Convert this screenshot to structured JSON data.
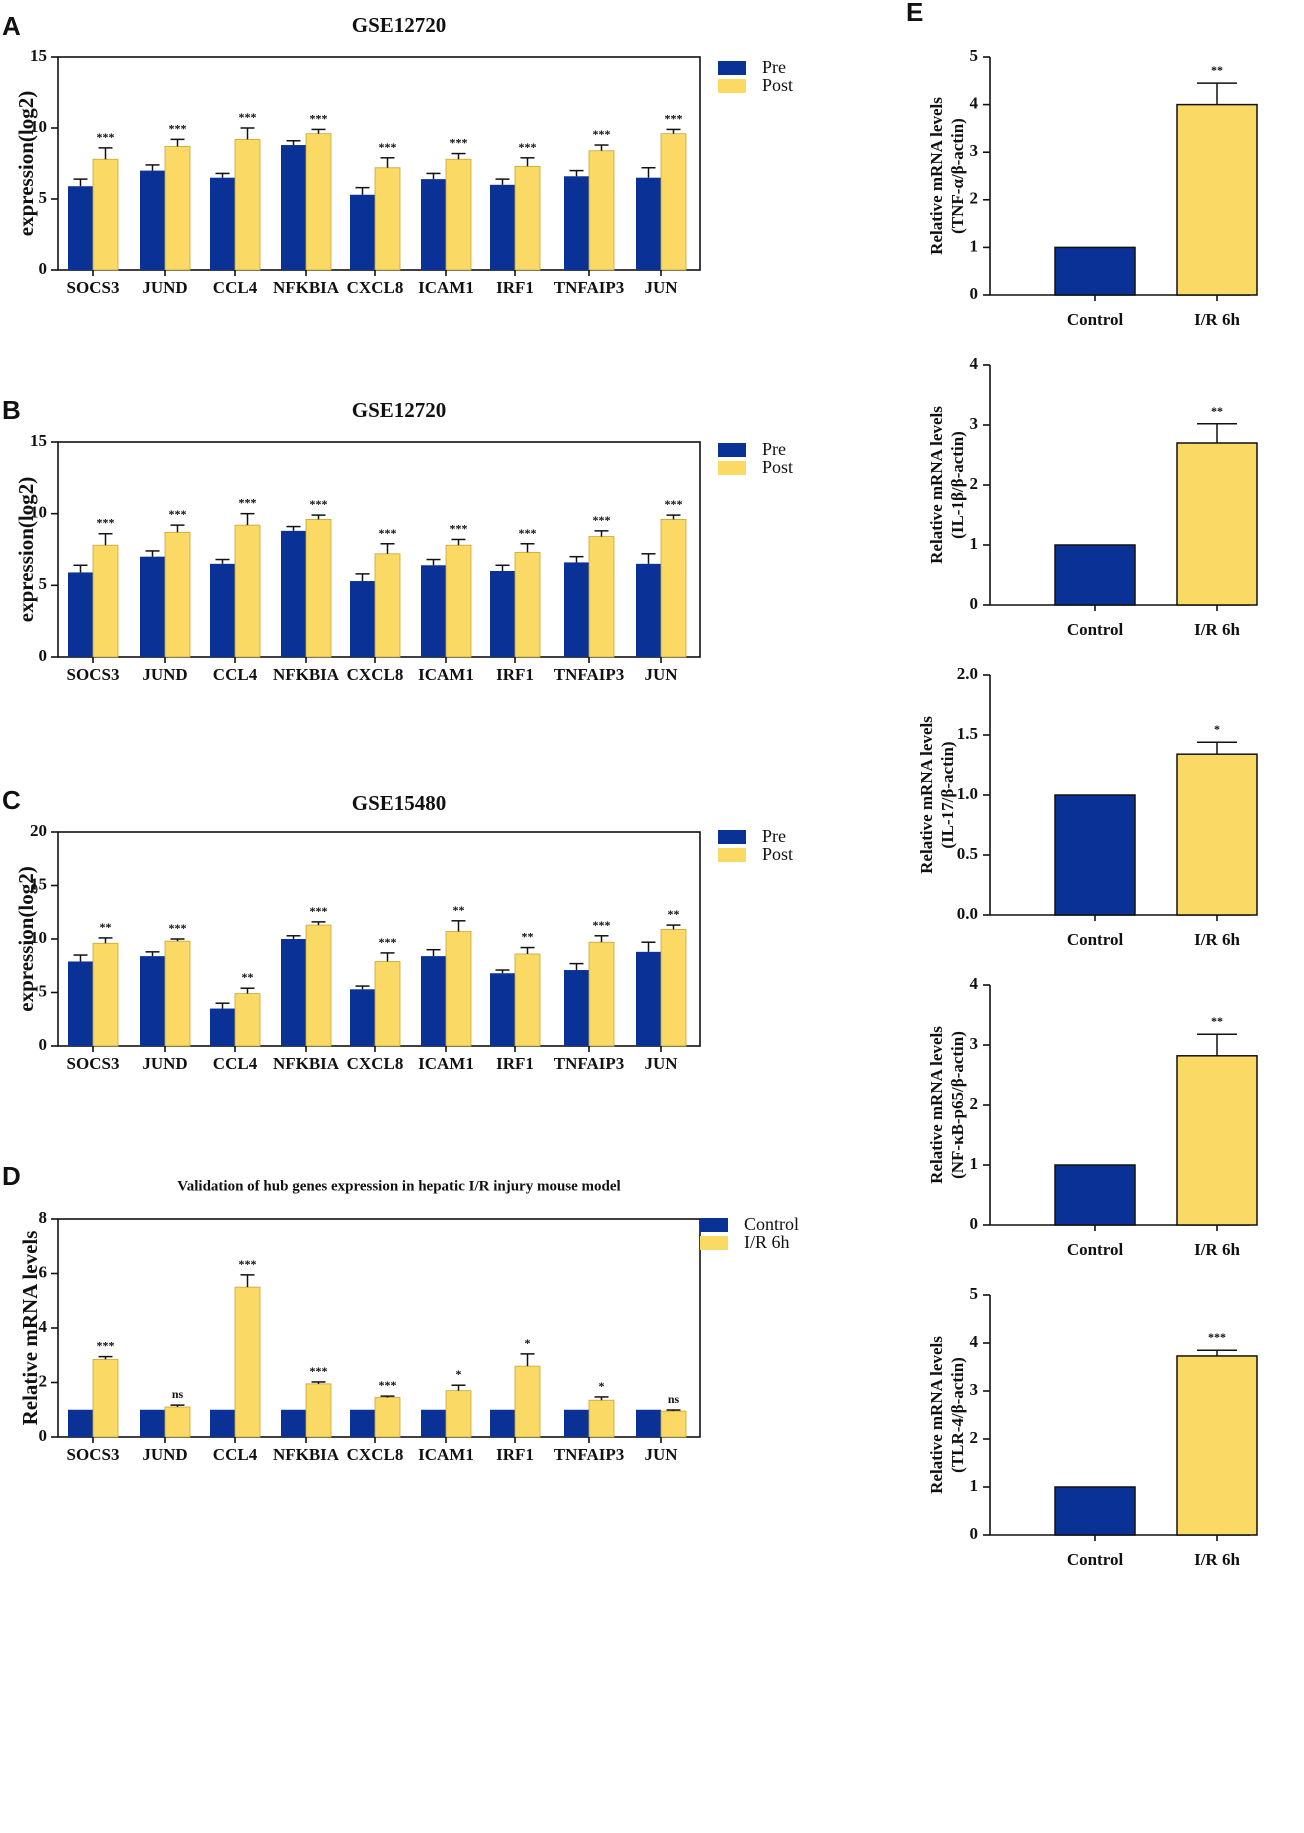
{
  "colors": {
    "control": "#0a3296",
    "treatment": "#fad964",
    "outline": "#111111"
  },
  "chart_data": [
    {
      "panel": "A",
      "type": "bar",
      "title": "GSE12720",
      "ylabel": "expression(log2)",
      "xlabel": "",
      "ylim": [
        0,
        15
      ],
      "yticks": [
        "0",
        "5",
        "10",
        "15"
      ],
      "ytick_values": [
        0,
        5,
        10,
        15
      ],
      "legend_position": "top-right",
      "categories": [
        "SOCS3",
        "JUND",
        "CCL4",
        "NFKBIA",
        "CXCL8",
        "ICAM1",
        "IRF1",
        "TNFAIP3",
        "JUN"
      ],
      "series": [
        {
          "name": "Pre",
          "values": [
            5.9,
            7.0,
            6.5,
            8.8,
            5.3,
            6.4,
            6.0,
            6.6,
            6.5
          ],
          "errors": [
            0.5,
            0.4,
            0.3,
            0.3,
            0.5,
            0.4,
            0.4,
            0.4,
            0.7
          ]
        },
        {
          "name": "Post",
          "values": [
            7.8,
            8.7,
            9.2,
            9.6,
            7.2,
            7.8,
            7.3,
            8.4,
            9.6
          ],
          "errors": [
            0.8,
            0.5,
            0.8,
            0.3,
            0.7,
            0.4,
            0.6,
            0.4,
            0.3
          ]
        }
      ],
      "significance": [
        "***",
        "***",
        "***",
        "***",
        "***",
        "***",
        "***",
        "***",
        "***"
      ]
    },
    {
      "panel": "B",
      "type": "bar",
      "title": "GSE12720",
      "ylabel": "expression(log2)",
      "xlabel": "",
      "ylim": [
        0,
        15
      ],
      "yticks": [
        "0",
        "5",
        "10",
        "15"
      ],
      "ytick_values": [
        0,
        5,
        10,
        15
      ],
      "legend_position": "top-right",
      "categories": [
        "SOCS3",
        "JUND",
        "CCL4",
        "NFKBIA",
        "CXCL8",
        "ICAM1",
        "IRF1",
        "TNFAIP3",
        "JUN"
      ],
      "series": [
        {
          "name": "Pre",
          "values": [
            5.9,
            7.0,
            6.5,
            8.8,
            5.3,
            6.4,
            6.0,
            6.6,
            6.5
          ],
          "errors": [
            0.5,
            0.4,
            0.3,
            0.3,
            0.5,
            0.4,
            0.4,
            0.4,
            0.7
          ]
        },
        {
          "name": "Post",
          "values": [
            7.8,
            8.7,
            9.2,
            9.6,
            7.2,
            7.8,
            7.3,
            8.4,
            9.6
          ],
          "errors": [
            0.8,
            0.5,
            0.8,
            0.3,
            0.7,
            0.4,
            0.6,
            0.4,
            0.3
          ]
        }
      ],
      "significance": [
        "***",
        "***",
        "***",
        "***",
        "***",
        "***",
        "***",
        "***",
        "***"
      ]
    },
    {
      "panel": "C",
      "type": "bar",
      "title": "GSE15480",
      "ylabel": "expression(log2)",
      "xlabel": "",
      "ylim": [
        0,
        20
      ],
      "yticks": [
        "0",
        "5",
        "10",
        "15",
        "20"
      ],
      "ytick_values": [
        0,
        5,
        10,
        15,
        20
      ],
      "legend_position": "top-right",
      "categories": [
        "SOCS3",
        "JUND",
        "CCL4",
        "NFKBIA",
        "CXCL8",
        "ICAM1",
        "IRF1",
        "TNFAIP3",
        "JUN"
      ],
      "series": [
        {
          "name": "Pre",
          "values": [
            7.9,
            8.4,
            3.5,
            10.0,
            5.3,
            8.4,
            6.8,
            7.1,
            8.8
          ],
          "errors": [
            0.6,
            0.4,
            0.5,
            0.3,
            0.3,
            0.6,
            0.3,
            0.6,
            0.9
          ]
        },
        {
          "name": "Post",
          "values": [
            9.6,
            9.8,
            4.9,
            11.3,
            7.9,
            10.7,
            8.6,
            9.7,
            10.9
          ],
          "errors": [
            0.5,
            0.2,
            0.5,
            0.3,
            0.8,
            1.0,
            0.6,
            0.6,
            0.4
          ]
        }
      ],
      "significance": [
        "**",
        "***",
        "**",
        "***",
        "***",
        "**",
        "**",
        "***",
        "**"
      ]
    },
    {
      "panel": "D",
      "type": "bar",
      "title": "Validation of hub genes expression in hepatic I/R injury mouse model",
      "ylabel": "Relative mRNA levels",
      "xlabel": "",
      "ylim": [
        0,
        8
      ],
      "yticks": [
        "0",
        "2",
        "4",
        "6",
        "8"
      ],
      "ytick_values": [
        0,
        2,
        4,
        6,
        8
      ],
      "legend_position": "top-right",
      "categories": [
        "SOCS3",
        "JUND",
        "CCL4",
        "NFKBIA",
        "CXCL8",
        "ICAM1",
        "IRF1",
        "TNFAIP3",
        "JUN"
      ],
      "series": [
        {
          "name": "Control",
          "values": [
            1,
            1,
            1,
            1,
            1,
            1,
            1,
            1,
            1
          ],
          "errors": [
            0,
            0,
            0,
            0,
            0,
            0,
            0,
            0,
            0
          ]
        },
        {
          "name": "I/R 6h",
          "values": [
            2.85,
            1.1,
            5.5,
            1.95,
            1.45,
            1.7,
            2.6,
            1.35,
            0.95
          ],
          "errors": [
            0.1,
            0.07,
            0.45,
            0.07,
            0.05,
            0.2,
            0.45,
            0.12,
            0.04
          ]
        }
      ],
      "significance": [
        "***",
        "ns",
        "***",
        "***",
        "***",
        "*",
        "*",
        "*",
        "ns"
      ]
    },
    {
      "panel": "E",
      "type": "bar",
      "title": "",
      "ylabel_line1": "Relative mRNA levels",
      "ylabel_line2": "(TNF-α/β-actin)",
      "ylim": [
        0,
        5
      ],
      "yticks": [
        "0",
        "1",
        "2",
        "3",
        "4",
        "5"
      ],
      "ytick_values": [
        0,
        1,
        2,
        3,
        4,
        5
      ],
      "categories": [
        "Control",
        "I/R 6h"
      ],
      "values": [
        1,
        4.0
      ],
      "errors": [
        0,
        0.45
      ],
      "significance": "**"
    },
    {
      "panel": "E",
      "type": "bar",
      "title": "",
      "ylabel_line1": "Relative mRNA levels",
      "ylabel_line2": "(IL-1β/β-actin)",
      "ylim": [
        0,
        4
      ],
      "yticks": [
        "0",
        "1",
        "2",
        "3",
        "4"
      ],
      "ytick_values": [
        0,
        1,
        2,
        3,
        4
      ],
      "categories": [
        "Control",
        "I/R 6h"
      ],
      "values": [
        1,
        2.7
      ],
      "errors": [
        0,
        0.32
      ],
      "significance": "**"
    },
    {
      "panel": "E",
      "type": "bar",
      "title": "",
      "ylabel_line1": "Relative mRNA levels",
      "ylabel_line2": "(IL-17/β-actin)",
      "ylim": [
        0,
        2
      ],
      "yticks": [
        "0.0",
        "0.5",
        "1.0",
        "1.5",
        "2.0"
      ],
      "ytick_values": [
        0,
        0.5,
        1.0,
        1.5,
        2.0
      ],
      "categories": [
        "Control",
        "I/R 6h"
      ],
      "values": [
        1,
        1.34
      ],
      "errors": [
        0,
        0.1
      ],
      "significance": "*"
    },
    {
      "panel": "E",
      "type": "bar",
      "title": "",
      "ylabel_line1": "Relative mRNA levels",
      "ylabel_line2": "(NF-κB-p65/β-actin)",
      "ylim": [
        0,
        4
      ],
      "yticks": [
        "0",
        "1",
        "2",
        "3",
        "4"
      ],
      "ytick_values": [
        0,
        1,
        2,
        3,
        4
      ],
      "categories": [
        "Control",
        "I/R 6h"
      ],
      "values": [
        1,
        2.82
      ],
      "errors": [
        0,
        0.36
      ],
      "significance": "**"
    },
    {
      "panel": "E",
      "type": "bar",
      "title": "",
      "ylabel_line1": "Relative mRNA levels",
      "ylabel_line2": "(TLR-4/β-actin)",
      "ylim": [
        0,
        5
      ],
      "yticks": [
        "0",
        "1",
        "2",
        "3",
        "4",
        "5"
      ],
      "ytick_values": [
        0,
        1,
        2,
        3,
        4,
        5
      ],
      "categories": [
        "Control",
        "I/R 6h"
      ],
      "values": [
        1,
        3.73
      ],
      "errors": [
        0,
        0.12
      ],
      "significance": "***"
    }
  ]
}
